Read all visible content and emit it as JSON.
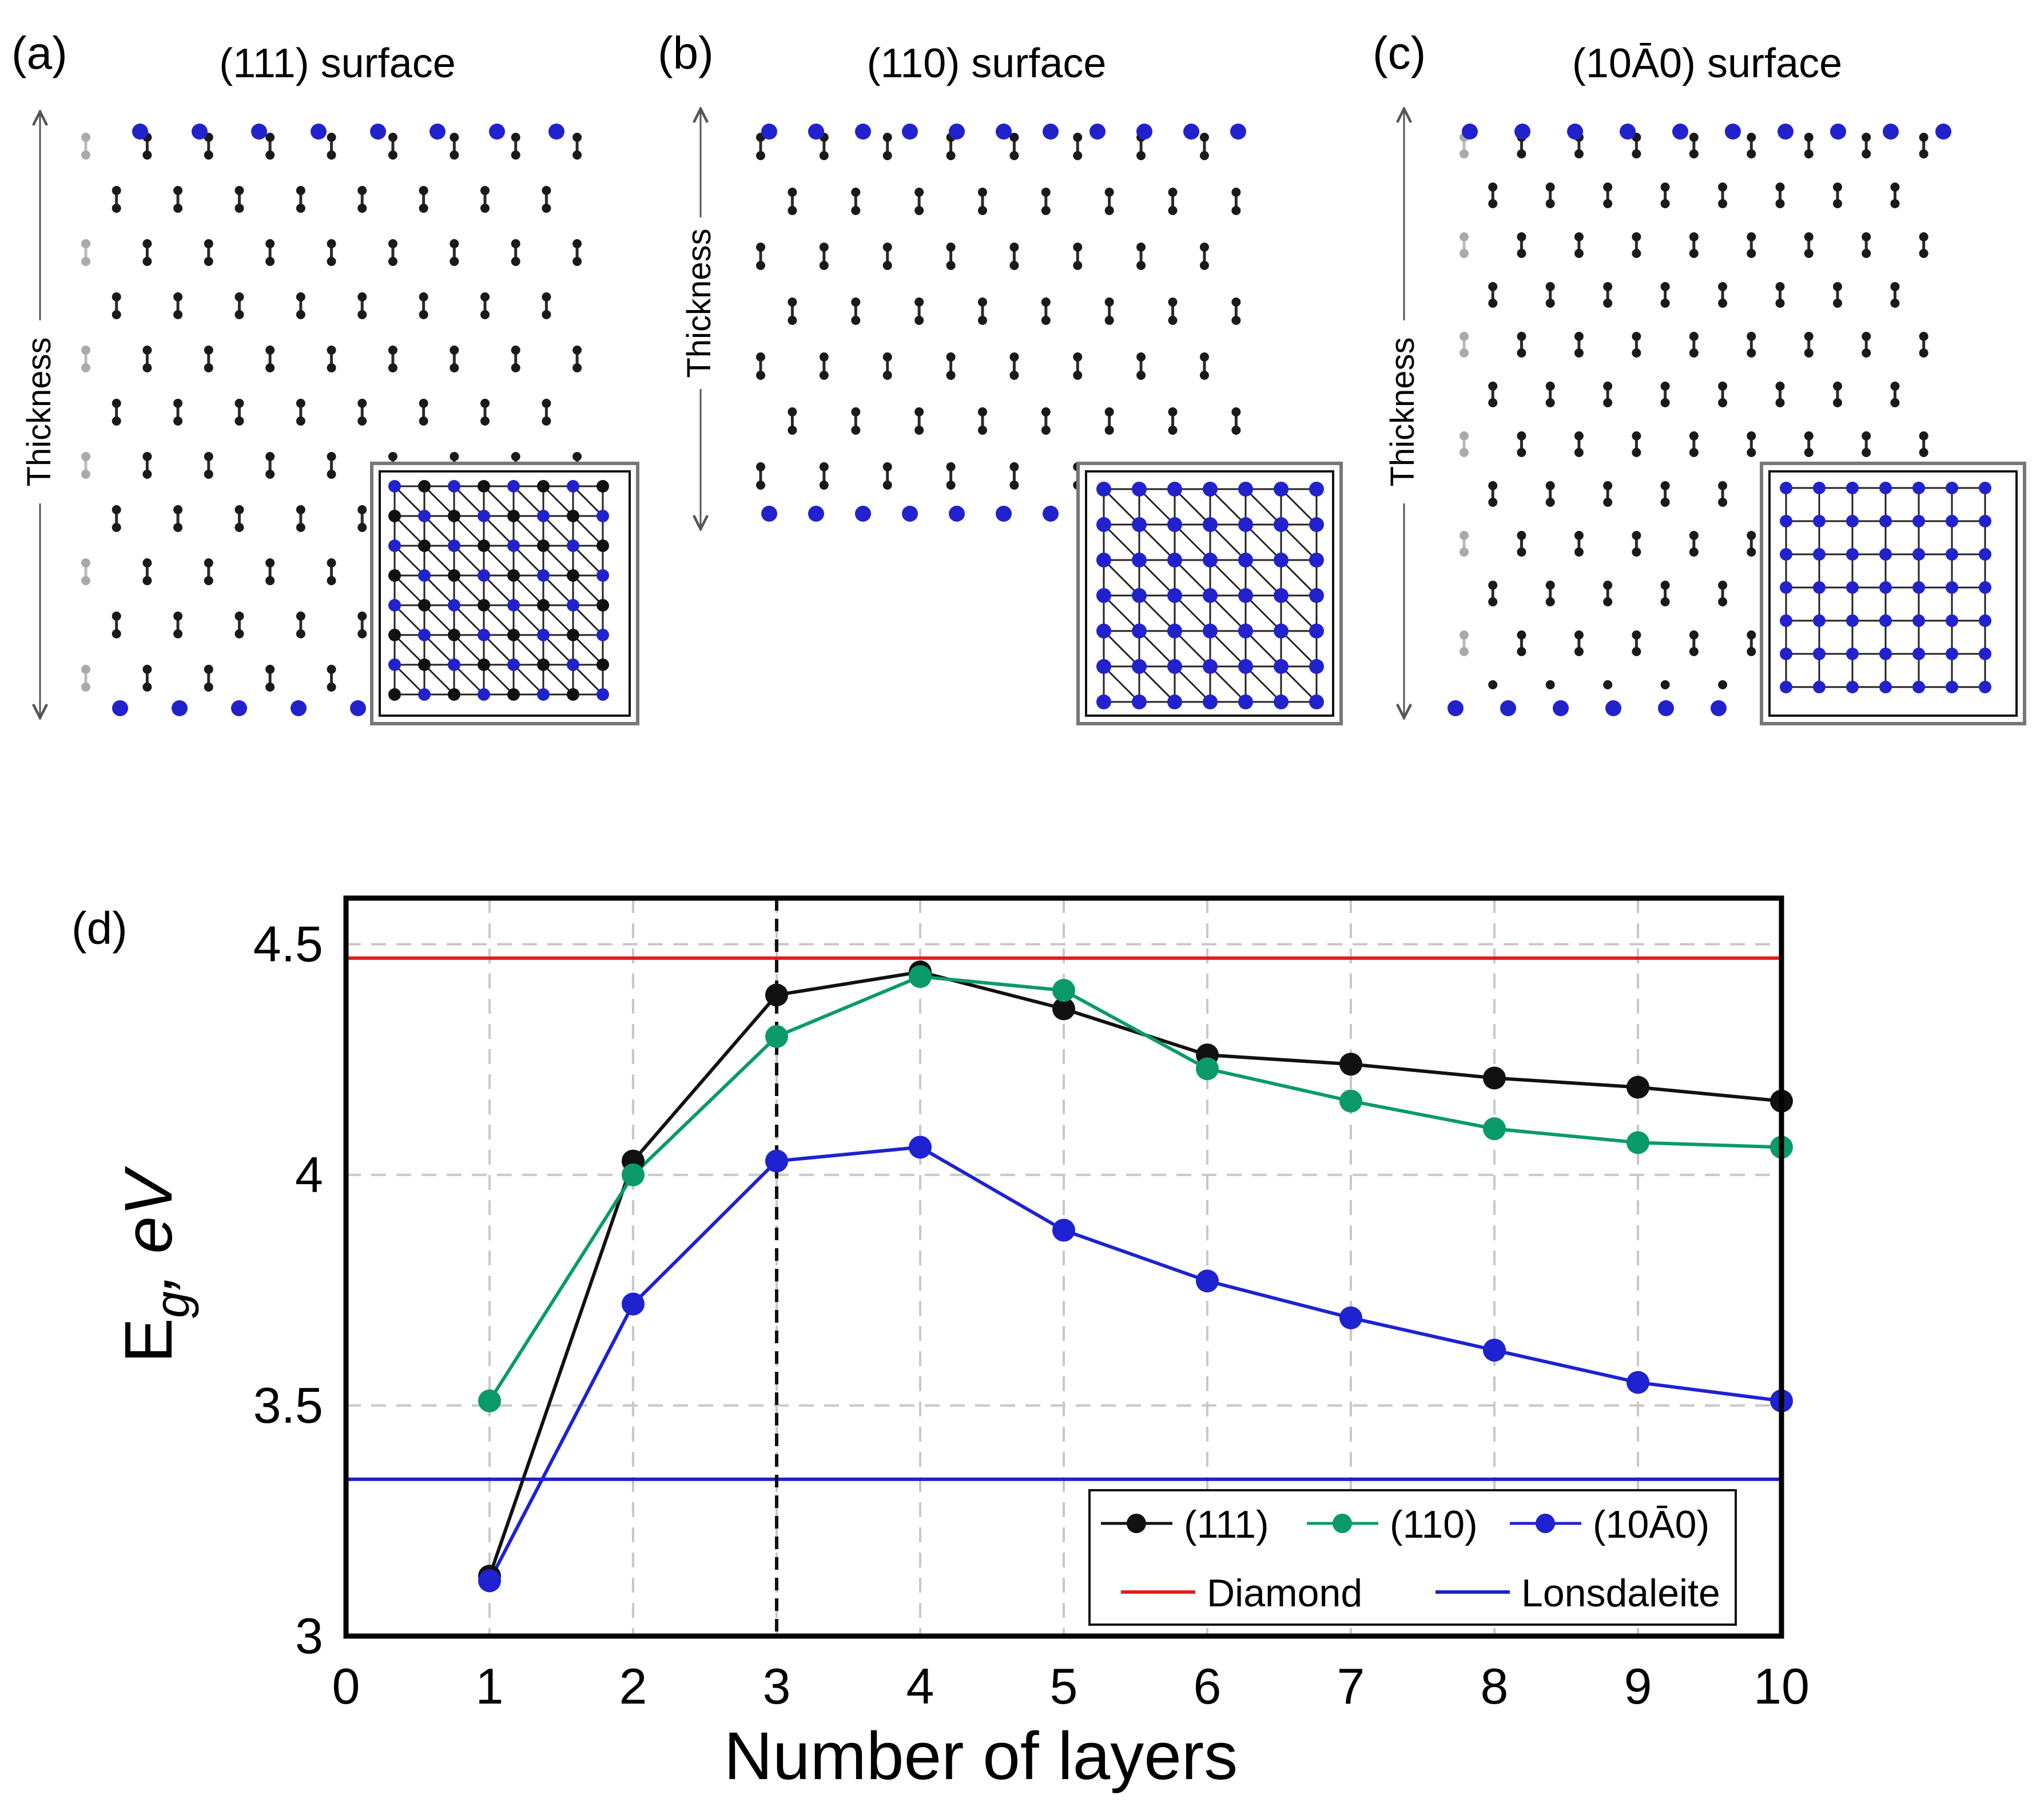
{
  "panels": [
    {
      "letter": "(a)",
      "title": "(111) surface",
      "thickness_label": "Thickness"
    },
    {
      "letter": "(b)",
      "title": "(110) surface",
      "thickness_label": "Thickness"
    },
    {
      "letter": "(c)",
      "title": "(10Ā0) surface",
      "thickness_label": "Thickness"
    }
  ],
  "colors": {
    "atom_black": "#1a1a1a",
    "atom_blue": "#2222cc",
    "series_111": "#111111",
    "series_110": "#0a9a6a",
    "series_1010": "#1e22d0",
    "diamond": "#e41d1d",
    "lonsdaleite": "#1e22c8",
    "grid": "#c8c8c8"
  },
  "chart_data": {
    "type": "line",
    "panel_letter": "(d)",
    "xlabel": "Number of layers",
    "ylabel_main": "E",
    "ylabel_sub": "g",
    "ylabel_rest": ", eV",
    "xlim": [
      0,
      10
    ],
    "ylim": [
      3,
      4.6
    ],
    "xticks": [
      "0",
      "1",
      "2",
      "3",
      "4",
      "5",
      "6",
      "7",
      "8",
      "9",
      "10"
    ],
    "yticks": [
      {
        "value": 3,
        "label": "3"
      },
      {
        "value": 3.5,
        "label": "3.5"
      },
      {
        "value": 4,
        "label": "4"
      },
      {
        "value": 4.5,
        "label": "4.5"
      }
    ],
    "grid": true,
    "vline_x": 3,
    "x": [
      1,
      2,
      3,
      4,
      5,
      6,
      7,
      8,
      9,
      10
    ],
    "series": [
      {
        "name": "(111)",
        "values": [
          3.13,
          4.03,
          4.39,
          4.44,
          4.36,
          4.26,
          4.24,
          4.21,
          4.19,
          4.16
        ]
      },
      {
        "name": "(110)",
        "values": [
          3.51,
          4.0,
          4.3,
          4.43,
          4.4,
          4.23,
          4.16,
          4.1,
          4.07,
          4.06
        ]
      },
      {
        "name": "(10Ā0)",
        "values": [
          3.12,
          3.72,
          4.03,
          4.06,
          3.88,
          3.77,
          3.69,
          3.62,
          3.55,
          3.51
        ]
      }
    ],
    "reference_lines": [
      {
        "name": "Diamond",
        "value": 4.47
      },
      {
        "name": "Lonsdaleite",
        "value": 3.34
      }
    ],
    "legend_position": "bottom-right"
  }
}
